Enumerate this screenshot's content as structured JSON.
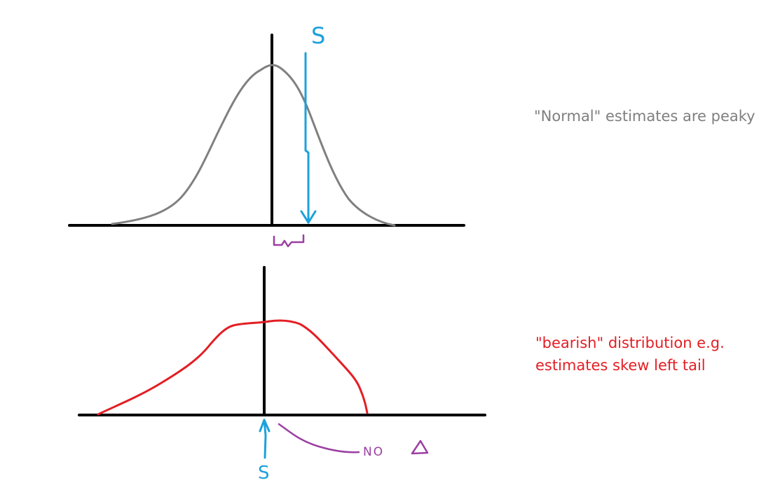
{
  "colors": {
    "axis": "#000000",
    "normal_curve": "#808080",
    "bearish_curve": "#e31e24",
    "spot_marker": "#1ba1dc",
    "delta_note": "#9b3fa3",
    "normal_text": "#7f7f7f",
    "bearish_text": "#e31e24"
  },
  "annotations": {
    "normal": "\"Normal\" estimates are peaky",
    "bearish_line1": "\"bearish\" distribution e.g.",
    "bearish_line2": "estimates skew left tail"
  },
  "top_plot": {
    "spot_label": "S",
    "curve_type": "bell",
    "spot_position": "right of peak",
    "brace_note": "offset between peak and S"
  },
  "bottom_plot": {
    "spot_label": "S",
    "delta_label": "NO",
    "delta_symbol": "Δ",
    "curve_type": "left-skewed, flat top, truncated right"
  },
  "icons": {
    "arrow_down": "spot-arrow-down-icon",
    "arrow_up": "spot-arrow-up-icon",
    "brace": "brace-icon",
    "triangle": "delta-triangle-icon"
  }
}
